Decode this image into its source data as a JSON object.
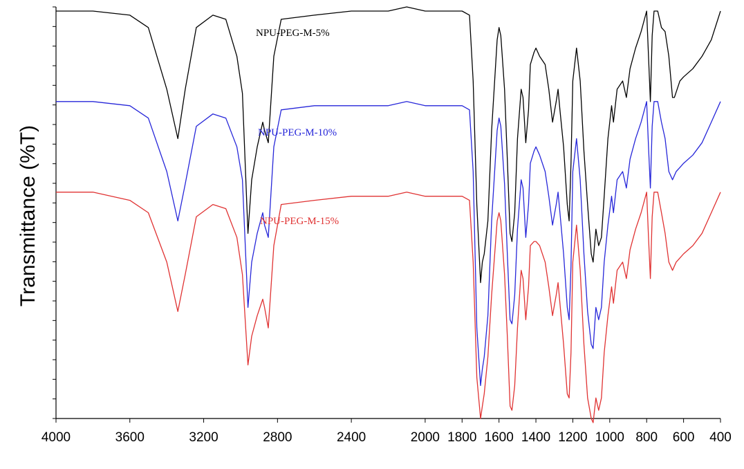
{
  "chart_data": {
    "type": "line",
    "title": "",
    "xlabel": "",
    "ylabel": "Transmittance (%T)",
    "xlim": [
      4000,
      400
    ],
    "x_reversed": true,
    "xticks": [
      4000,
      3600,
      3200,
      2800,
      2400,
      2000,
      1800,
      1600,
      1400,
      1200,
      1000,
      800,
      600,
      400
    ],
    "ylim": [
      0,
      100
    ],
    "y_tick_labels_shown": false,
    "y_minor_tick_count": 21,
    "grid": false,
    "legend": "inline labels",
    "series": [
      {
        "name": "NPU-PEG-M-5%",
        "color": "#000000",
        "points": [
          [
            4000,
            99
          ],
          [
            3800,
            99
          ],
          [
            3600,
            98
          ],
          [
            3500,
            95
          ],
          [
            3400,
            80
          ],
          [
            3340,
            68
          ],
          [
            3300,
            80
          ],
          [
            3240,
            95
          ],
          [
            3150,
            98
          ],
          [
            3080,
            97
          ],
          [
            3020,
            88
          ],
          [
            2990,
            79
          ],
          [
            2960,
            45
          ],
          [
            2940,
            58
          ],
          [
            2910,
            66
          ],
          [
            2880,
            72
          ],
          [
            2870,
            70
          ],
          [
            2850,
            67
          ],
          [
            2820,
            88
          ],
          [
            2780,
            97
          ],
          [
            2600,
            98
          ],
          [
            2400,
            99
          ],
          [
            2200,
            99
          ],
          [
            2100,
            100
          ],
          [
            2000,
            99
          ],
          [
            1800,
            99
          ],
          [
            1760,
            98
          ],
          [
            1740,
            82
          ],
          [
            1720,
            52
          ],
          [
            1700,
            33
          ],
          [
            1690,
            38
          ],
          [
            1680,
            40
          ],
          [
            1660,
            48
          ],
          [
            1640,
            70
          ],
          [
            1610,
            92
          ],
          [
            1600,
            95
          ],
          [
            1590,
            93
          ],
          [
            1570,
            80
          ],
          [
            1555,
            63
          ],
          [
            1540,
            45
          ],
          [
            1530,
            43
          ],
          [
            1515,
            50
          ],
          [
            1500,
            68
          ],
          [
            1480,
            80
          ],
          [
            1470,
            78
          ],
          [
            1455,
            67
          ],
          [
            1440,
            75
          ],
          [
            1430,
            86
          ],
          [
            1410,
            89
          ],
          [
            1400,
            90
          ],
          [
            1380,
            88
          ],
          [
            1350,
            86
          ],
          [
            1330,
            80
          ],
          [
            1310,
            72
          ],
          [
            1290,
            77
          ],
          [
            1280,
            80
          ],
          [
            1270,
            75
          ],
          [
            1250,
            66
          ],
          [
            1230,
            52
          ],
          [
            1220,
            48
          ],
          [
            1210,
            62
          ],
          [
            1200,
            82
          ],
          [
            1180,
            90
          ],
          [
            1160,
            82
          ],
          [
            1140,
            65
          ],
          [
            1120,
            52
          ],
          [
            1100,
            40
          ],
          [
            1090,
            38
          ],
          [
            1075,
            46
          ],
          [
            1060,
            42
          ],
          [
            1045,
            44
          ],
          [
            1030,
            54
          ],
          [
            1010,
            68
          ],
          [
            990,
            76
          ],
          [
            980,
            72
          ],
          [
            960,
            80
          ],
          [
            930,
            82
          ],
          [
            910,
            78
          ],
          [
            890,
            85
          ],
          [
            860,
            90
          ],
          [
            830,
            94
          ],
          [
            800,
            99
          ],
          [
            790,
            88
          ],
          [
            780,
            77
          ],
          [
            770,
            93
          ],
          [
            760,
            99
          ],
          [
            740,
            99
          ],
          [
            720,
            95
          ],
          [
            700,
            94
          ],
          [
            680,
            88
          ],
          [
            660,
            78
          ],
          [
            650,
            78
          ],
          [
            620,
            82
          ],
          [
            600,
            83
          ],
          [
            550,
            85
          ],
          [
            500,
            88
          ],
          [
            450,
            92
          ],
          [
            400,
            99
          ]
        ]
      },
      {
        "name": "NPU-PEG-M-10%",
        "color": "#2626d9",
        "points": [
          [
            4000,
            77
          ],
          [
            3800,
            77
          ],
          [
            3600,
            76
          ],
          [
            3500,
            73
          ],
          [
            3400,
            60
          ],
          [
            3340,
            48
          ],
          [
            3300,
            57
          ],
          [
            3240,
            71
          ],
          [
            3150,
            74
          ],
          [
            3080,
            73
          ],
          [
            3020,
            66
          ],
          [
            2990,
            58
          ],
          [
            2960,
            27
          ],
          [
            2940,
            38
          ],
          [
            2910,
            45
          ],
          [
            2880,
            50
          ],
          [
            2870,
            47
          ],
          [
            2850,
            44
          ],
          [
            2820,
            66
          ],
          [
            2780,
            75
          ],
          [
            2600,
            76
          ],
          [
            2400,
            76
          ],
          [
            2200,
            76
          ],
          [
            2100,
            77
          ],
          [
            2000,
            76
          ],
          [
            1800,
            76
          ],
          [
            1760,
            75
          ],
          [
            1740,
            60
          ],
          [
            1720,
            22
          ],
          [
            1700,
            8
          ],
          [
            1690,
            12
          ],
          [
            1680,
            15
          ],
          [
            1660,
            25
          ],
          [
            1640,
            48
          ],
          [
            1610,
            70
          ],
          [
            1600,
            73
          ],
          [
            1590,
            71
          ],
          [
            1570,
            57
          ],
          [
            1555,
            40
          ],
          [
            1540,
            24
          ],
          [
            1530,
            23
          ],
          [
            1515,
            30
          ],
          [
            1500,
            46
          ],
          [
            1480,
            58
          ],
          [
            1470,
            56
          ],
          [
            1455,
            44
          ],
          [
            1440,
            52
          ],
          [
            1430,
            62
          ],
          [
            1410,
            65
          ],
          [
            1400,
            66
          ],
          [
            1380,
            64
          ],
          [
            1350,
            60
          ],
          [
            1330,
            54
          ],
          [
            1310,
            47
          ],
          [
            1290,
            52
          ],
          [
            1280,
            55
          ],
          [
            1270,
            50
          ],
          [
            1250,
            40
          ],
          [
            1230,
            27
          ],
          [
            1220,
            24
          ],
          [
            1210,
            37
          ],
          [
            1200,
            60
          ],
          [
            1180,
            68
          ],
          [
            1160,
            58
          ],
          [
            1140,
            40
          ],
          [
            1120,
            26
          ],
          [
            1100,
            18
          ],
          [
            1090,
            17
          ],
          [
            1075,
            27
          ],
          [
            1060,
            24
          ],
          [
            1045,
            27
          ],
          [
            1030,
            38
          ],
          [
            1010,
            47
          ],
          [
            990,
            54
          ],
          [
            980,
            50
          ],
          [
            960,
            58
          ],
          [
            930,
            60
          ],
          [
            910,
            56
          ],
          [
            890,
            63
          ],
          [
            860,
            68
          ],
          [
            830,
            72
          ],
          [
            800,
            77
          ],
          [
            790,
            66
          ],
          [
            780,
            56
          ],
          [
            770,
            71
          ],
          [
            760,
            77
          ],
          [
            740,
            77
          ],
          [
            720,
            72
          ],
          [
            700,
            68
          ],
          [
            680,
            60
          ],
          [
            660,
            58
          ],
          [
            640,
            60
          ],
          [
            620,
            61
          ],
          [
            600,
            62
          ],
          [
            550,
            64
          ],
          [
            500,
            67
          ],
          [
            450,
            72
          ],
          [
            400,
            77
          ]
        ]
      },
      {
        "name": "NPU-PEG-M-15%",
        "color": "#e03232",
        "points": [
          [
            4000,
            55
          ],
          [
            3800,
            55
          ],
          [
            3600,
            53
          ],
          [
            3500,
            50
          ],
          [
            3400,
            38
          ],
          [
            3340,
            26
          ],
          [
            3300,
            35
          ],
          [
            3240,
            49
          ],
          [
            3150,
            52
          ],
          [
            3080,
            51
          ],
          [
            3020,
            44
          ],
          [
            2990,
            35
          ],
          [
            2960,
            13
          ],
          [
            2940,
            20
          ],
          [
            2910,
            25
          ],
          [
            2880,
            29
          ],
          [
            2870,
            27
          ],
          [
            2850,
            22
          ],
          [
            2820,
            42
          ],
          [
            2780,
            52
          ],
          [
            2600,
            53
          ],
          [
            2400,
            54
          ],
          [
            2200,
            54
          ],
          [
            2100,
            55
          ],
          [
            2000,
            54
          ],
          [
            1800,
            54
          ],
          [
            1760,
            53
          ],
          [
            1740,
            38
          ],
          [
            1720,
            10
          ],
          [
            1700,
            0
          ],
          [
            1690,
            3
          ],
          [
            1680,
            6
          ],
          [
            1660,
            15
          ],
          [
            1640,
            30
          ],
          [
            1610,
            48
          ],
          [
            1600,
            50
          ],
          [
            1590,
            48
          ],
          [
            1570,
            35
          ],
          [
            1555,
            20
          ],
          [
            1540,
            3
          ],
          [
            1530,
            2
          ],
          [
            1515,
            8
          ],
          [
            1500,
            22
          ],
          [
            1480,
            36
          ],
          [
            1470,
            34
          ],
          [
            1455,
            24
          ],
          [
            1440,
            32
          ],
          [
            1430,
            42
          ],
          [
            1410,
            43
          ],
          [
            1400,
            43
          ],
          [
            1380,
            42
          ],
          [
            1350,
            38
          ],
          [
            1330,
            32
          ],
          [
            1310,
            25
          ],
          [
            1290,
            30
          ],
          [
            1280,
            33
          ],
          [
            1270,
            28
          ],
          [
            1250,
            18
          ],
          [
            1230,
            6
          ],
          [
            1220,
            5
          ],
          [
            1210,
            16
          ],
          [
            1200,
            38
          ],
          [
            1180,
            47
          ],
          [
            1160,
            36
          ],
          [
            1140,
            18
          ],
          [
            1120,
            5
          ],
          [
            1100,
            0
          ],
          [
            1090,
            -1
          ],
          [
            1075,
            5
          ],
          [
            1060,
            2
          ],
          [
            1045,
            5
          ],
          [
            1030,
            16
          ],
          [
            1010,
            25
          ],
          [
            990,
            32
          ],
          [
            980,
            28
          ],
          [
            960,
            36
          ],
          [
            930,
            38
          ],
          [
            910,
            34
          ],
          [
            890,
            41
          ],
          [
            860,
            46
          ],
          [
            830,
            50
          ],
          [
            800,
            55
          ],
          [
            790,
            44
          ],
          [
            780,
            34
          ],
          [
            770,
            49
          ],
          [
            760,
            55
          ],
          [
            740,
            55
          ],
          [
            720,
            50
          ],
          [
            700,
            45
          ],
          [
            680,
            38
          ],
          [
            660,
            36
          ],
          [
            640,
            38
          ],
          [
            620,
            39
          ],
          [
            600,
            40
          ],
          [
            550,
            42
          ],
          [
            500,
            45
          ],
          [
            450,
            50
          ],
          [
            400,
            55
          ]
        ]
      }
    ]
  }
}
